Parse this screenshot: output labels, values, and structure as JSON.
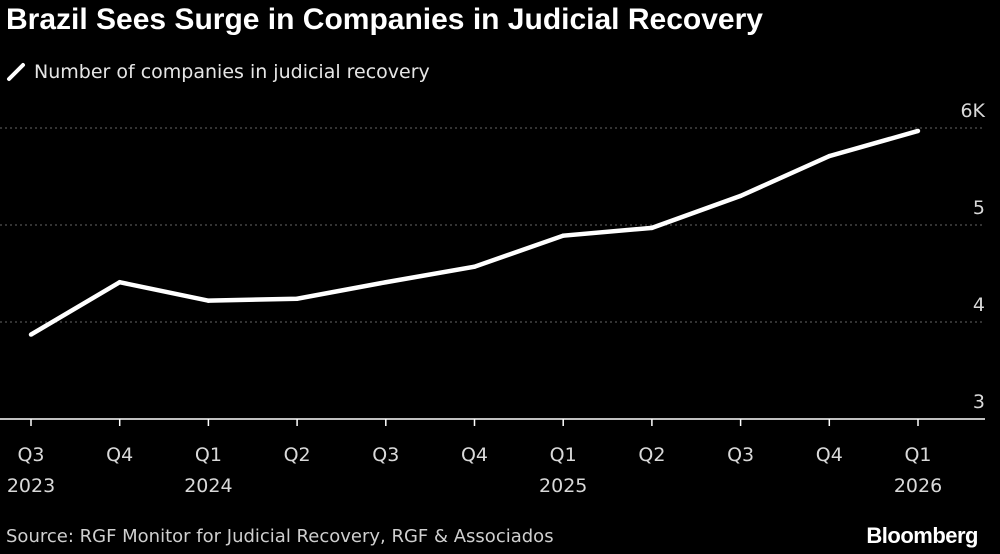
{
  "header": {
    "title": "Brazil Sees Surge in Companies in Judicial Recovery"
  },
  "legend": {
    "label": "Number of companies in judicial recovery",
    "icon": "legend-line-icon"
  },
  "footer": {
    "source": "Source: RGF Monitor for Judicial Recovery, RGF & Associados",
    "brand": "Bloomberg"
  },
  "colors": {
    "background": "#000000",
    "line": "#ffffff",
    "grid": "#666666",
    "axis": "#ffffff",
    "text": "#d9d9d9"
  },
  "chart_data": {
    "type": "line",
    "title": "Brazil Sees Surge in Companies in Judicial Recovery",
    "xlabel": "",
    "ylabel": "",
    "categories": [
      "Q3 2023",
      "Q4 2023",
      "Q1 2024",
      "Q2 2024",
      "Q3 2024",
      "Q4 2024",
      "Q1 2025",
      "Q2 2025",
      "Q3 2025",
      "Q4 2025",
      "Q1 2026"
    ],
    "x_tick_labels": [
      {
        "quarter": "Q3",
        "year": "2023"
      },
      {
        "quarter": "Q4",
        "year": ""
      },
      {
        "quarter": "Q1",
        "year": "2024"
      },
      {
        "quarter": "Q2",
        "year": ""
      },
      {
        "quarter": "Q3",
        "year": ""
      },
      {
        "quarter": "Q4",
        "year": ""
      },
      {
        "quarter": "Q1",
        "year": "2025"
      },
      {
        "quarter": "Q2",
        "year": ""
      },
      {
        "quarter": "Q3",
        "year": ""
      },
      {
        "quarter": "Q4",
        "year": ""
      },
      {
        "quarter": "Q1",
        "year": "2026"
      }
    ],
    "series": [
      {
        "name": "Number of companies in judicial recovery",
        "values": [
          3.87,
          4.41,
          4.22,
          4.24,
          4.41,
          4.57,
          4.89,
          4.97,
          5.3,
          5.71,
          5.97
        ]
      }
    ],
    "ylim": [
      3,
      6
    ],
    "y_ticks": [
      {
        "value": 3,
        "label": "3"
      },
      {
        "value": 4,
        "label": "4"
      },
      {
        "value": 5,
        "label": "5"
      },
      {
        "value": 6,
        "label": "6K"
      }
    ],
    "grid": true,
    "legend_position": "top-left"
  }
}
